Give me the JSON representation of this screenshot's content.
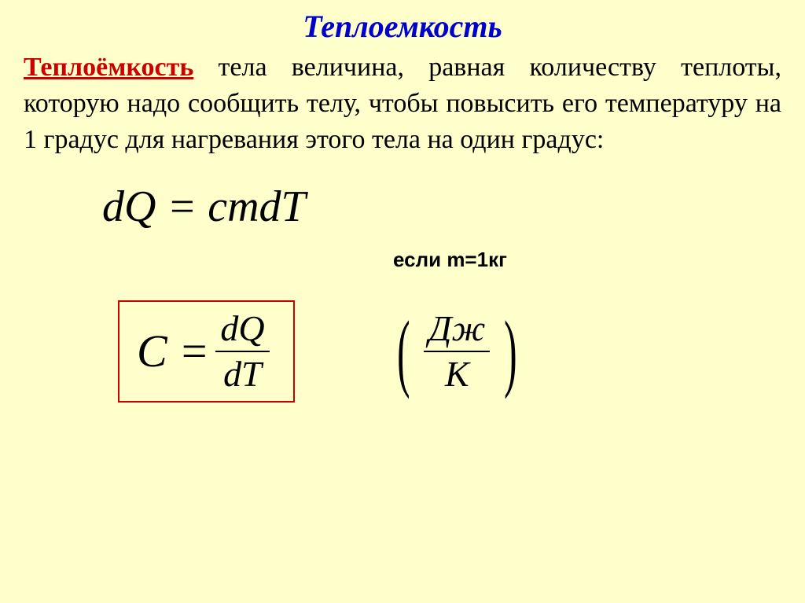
{
  "slide": {
    "background_color": "#ffffcc",
    "title": {
      "text": "Теплоемкость",
      "color": "#0000cc",
      "font_style": "italic",
      "font_weight": "bold",
      "font_size_pt": 30
    },
    "definition": {
      "term": "Теплоёмкость",
      "term_color": "#cc0000",
      "rest": " тела величина, равная количеству теплоты, которую надо сообщить телу, чтобы повысить его температуру на 1 градус для нагревания этого тела на один градус:",
      "text_color": "#000000",
      "font_size_pt": 25
    },
    "equation1": {
      "display": "dQ = cmdT",
      "font_style": "italic",
      "font_size_pt": 42,
      "color": "#000000"
    },
    "condition": {
      "prefix": "если ",
      "expr": "m=1кг",
      "font_family": "Arial",
      "font_weight": "bold",
      "font_size_pt": 20
    },
    "equation2": {
      "lhs": "C = ",
      "numerator": "dQ",
      "denominator": "dT",
      "box_border_color": "#cc0000",
      "font_size_pt": 42
    },
    "units": {
      "numerator": "Дж",
      "denominator": "К",
      "paren_left": "(",
      "paren_right": ")",
      "font_size_pt": 34
    }
  }
}
